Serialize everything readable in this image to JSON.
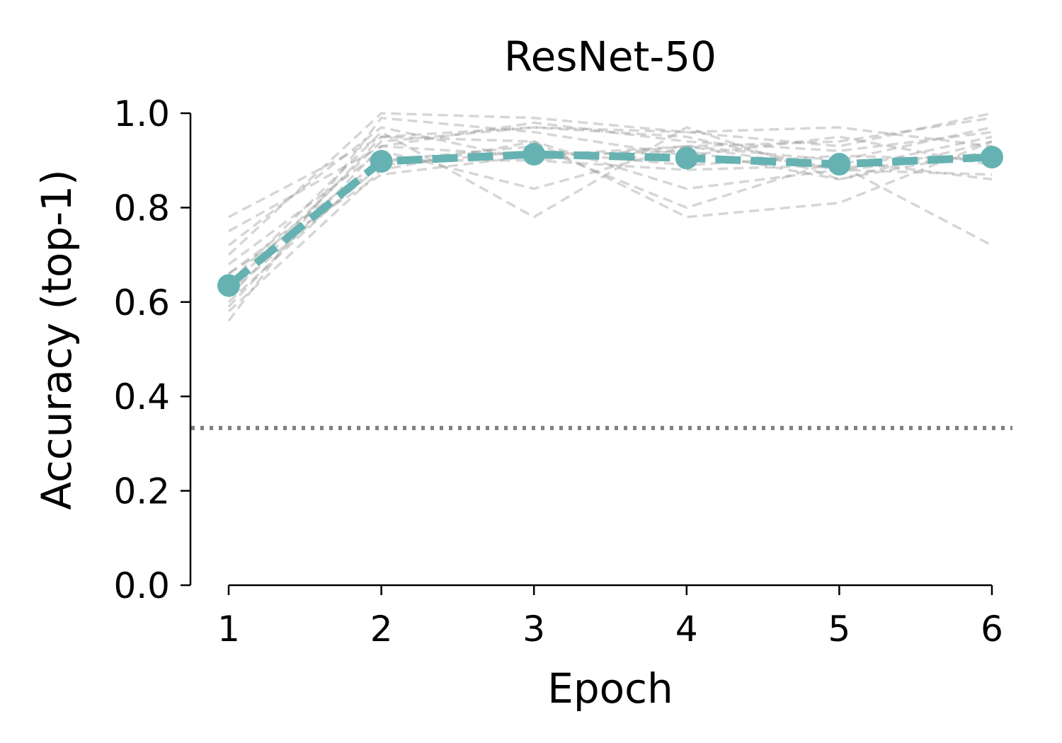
{
  "chart_data": {
    "type": "line",
    "title": "ResNet-50",
    "xlabel": "Epoch",
    "ylabel": "Accuracy (top-1)",
    "xlim": [
      0.75,
      6.0
    ],
    "ylim": [
      0.0,
      1.0
    ],
    "x_ticks": [
      "1",
      "2",
      "3",
      "4",
      "5",
      "6"
    ],
    "y_ticks": [
      "0.0",
      "0.2",
      "0.4",
      "0.6",
      "0.8",
      "1.0"
    ],
    "x": [
      1,
      2,
      3,
      4,
      5,
      6
    ],
    "grid": false,
    "chance_level": 0.333,
    "main_series": {
      "values": [
        0.635,
        0.898,
        0.913,
        0.905,
        0.892,
        0.907
      ],
      "color": "#66b2b2",
      "style": "dashed-with-markers"
    },
    "background_series_color": "#999999",
    "background_series": [
      [
        0.78,
        0.95,
        0.97,
        0.96,
        0.97,
        0.93
      ],
      [
        0.75,
        0.93,
        0.98,
        0.94,
        0.92,
        0.96
      ],
      [
        0.72,
        0.97,
        0.9,
        0.93,
        0.94,
        0.99
      ],
      [
        0.7,
        1.0,
        0.99,
        0.96,
        0.93,
        1.0
      ],
      [
        0.68,
        0.92,
        0.84,
        0.93,
        0.88,
        0.95
      ],
      [
        0.66,
        0.9,
        0.93,
        0.8,
        0.9,
        0.97
      ],
      [
        0.64,
        0.96,
        0.78,
        0.97,
        0.86,
        0.92
      ],
      [
        0.62,
        0.89,
        0.92,
        0.89,
        0.91,
        0.9
      ],
      [
        0.61,
        0.95,
        0.94,
        0.78,
        0.81,
        0.94
      ],
      [
        0.6,
        0.9,
        0.9,
        0.88,
        0.89,
        0.72
      ],
      [
        0.59,
        0.93,
        0.91,
        0.93,
        0.9,
        0.86
      ],
      [
        0.58,
        0.88,
        0.94,
        0.84,
        0.88,
        0.91
      ],
      [
        0.56,
        0.99,
        0.96,
        0.91,
        0.95,
        0.89
      ],
      [
        0.66,
        0.87,
        0.91,
        0.92,
        0.86,
        0.94
      ],
      [
        0.63,
        0.94,
        0.97,
        0.95,
        0.88,
        0.87
      ]
    ]
  }
}
